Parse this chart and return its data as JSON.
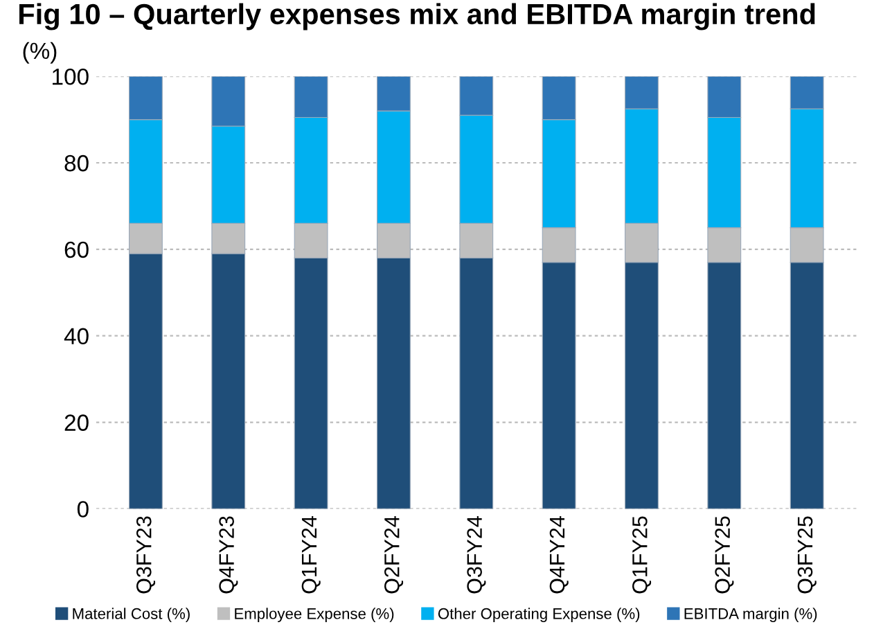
{
  "chart_data": {
    "type": "bar",
    "stacked": true,
    "title": "Fig 10 – Quarterly expenses mix and EBITDA margin trend",
    "ylabel": "(%)",
    "categories": [
      "Q3FY23",
      "Q4FY23",
      "Q1FY24",
      "Q2FY24",
      "Q3FY24",
      "Q4FY24",
      "Q1FY25",
      "Q2FY25",
      "Q3FY25"
    ],
    "series": [
      {
        "name": "Material Cost (%)",
        "color": "#1f4e79",
        "values": [
          59,
          59,
          58,
          58,
          58,
          57,
          57,
          57,
          57
        ]
      },
      {
        "name": "Employee Expense (%)",
        "color": "#bfbfbf",
        "values": [
          7,
          7,
          8,
          8,
          8,
          8,
          9,
          8,
          8
        ]
      },
      {
        "name": "Other Operating Expense (%)",
        "color": "#00b0f0",
        "values": [
          24,
          22.5,
          24.5,
          26,
          25,
          25,
          26.5,
          25.5,
          27.5
        ]
      },
      {
        "name": "EBITDA margin (%)",
        "color": "#2e75b6",
        "values": [
          10,
          11.5,
          9.5,
          8,
          9,
          10,
          7.5,
          9.5,
          7.5
        ]
      }
    ],
    "ylim": [
      0,
      100
    ],
    "yticks": [
      0,
      20,
      40,
      60,
      80,
      100
    ],
    "grid": "y",
    "legend": "bottom"
  }
}
